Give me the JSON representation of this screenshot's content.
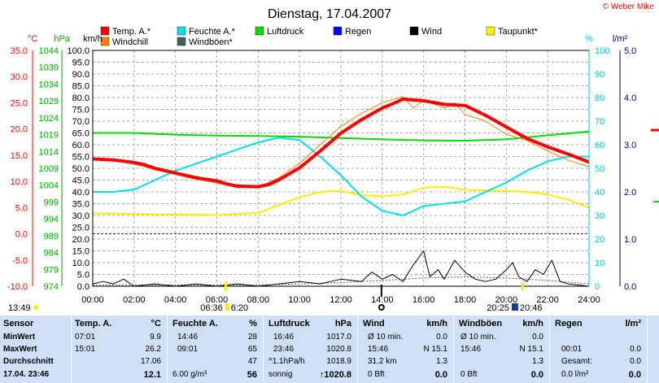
{
  "copyright": "© Weber Mike",
  "chart_data": {
    "type": "line",
    "title": "Dienstag, 17.04.2007",
    "x": {
      "unit": "time of day",
      "ticks": [
        "00:00",
        "02:00",
        "04:00",
        "06:00",
        "08:00",
        "10:00",
        "12:00",
        "14:00",
        "16:00",
        "18:00",
        "20:00",
        "22:00",
        "24:00"
      ],
      "range_hours": [
        0,
        24
      ]
    },
    "axes": {
      "temp": {
        "label": "°C",
        "range": [
          -10,
          35
        ],
        "step": 5,
        "color": "#ff0000",
        "ticks": [
          "35.0",
          "30.0",
          "25.0",
          "20.0",
          "15.0",
          "10.0",
          "5.0",
          "0.0",
          "-5.0",
          "-10.0"
        ]
      },
      "pressure": {
        "label": "hPa",
        "range": [
          974,
          1044
        ],
        "color": "#00aa00",
        "ticks": [
          "1044",
          "1039",
          "1034",
          "1029",
          "1024",
          "1019",
          "1014",
          "1009",
          "1004",
          "999",
          "994",
          "989",
          "984",
          "979",
          "974"
        ]
      },
      "wind": {
        "label": "km/h",
        "range": [
          0,
          100
        ],
        "step": 5,
        "color": "#000000",
        "ticks": [
          "100.0",
          "95.0",
          "90.0",
          "85.0",
          "80.0",
          "75.0",
          "70.0",
          "65.0",
          "60.0",
          "55.0",
          "50.0",
          "45.0",
          "40.0",
          "35.0",
          "30.0",
          "25.0",
          "20.0",
          "15.0",
          "10.0",
          "5.0",
          "0.0"
        ]
      },
      "humidity": {
        "label": "%",
        "range": [
          0,
          100
        ],
        "color": "#00c8e8",
        "ticks": [
          "100",
          "90",
          "80",
          "70",
          "60",
          "50",
          "40",
          "30",
          "20",
          "10",
          "0"
        ]
      },
      "rain": {
        "label": "l/m²",
        "range": [
          0,
          5
        ],
        "color": "#000080",
        "ticks": [
          "5.0",
          "4.0",
          "3.0",
          "2.0",
          "1.0",
          "0.0"
        ]
      }
    },
    "legend": [
      {
        "name": "Temp. A.*",
        "color": "#ff0000"
      },
      {
        "name": "Feuchte A.*",
        "color": "#00e0f0"
      },
      {
        "name": "Luftdruck",
        "color": "#00dd00"
      },
      {
        "name": "Regen",
        "color": "#0000ff"
      },
      {
        "name": "Wind",
        "color": "#000000"
      },
      {
        "name": "Taupunkt*",
        "color": "#ffee00"
      },
      {
        "name": "Windchill",
        "color": "#ff8000"
      },
      {
        "name": "Windböen*",
        "color": "#406060"
      }
    ],
    "grid": true,
    "legend_position": "top",
    "series": [
      {
        "name": "Temp. A.*",
        "axis": "temp",
        "color": "#ff0000",
        "points": [
          [
            0,
            14.3
          ],
          [
            1,
            14.1
          ],
          [
            2,
            13.6
          ],
          [
            2.5,
            13.2
          ],
          [
            3,
            12.5
          ],
          [
            4,
            11.6
          ],
          [
            5,
            10.7
          ],
          [
            6,
            10.1
          ],
          [
            6.5,
            9.5
          ],
          [
            7,
            9.1
          ],
          [
            8,
            9.0
          ],
          [
            8.5,
            9.4
          ],
          [
            9,
            10.3
          ],
          [
            10,
            12.6
          ],
          [
            11,
            15.8
          ],
          [
            12,
            19.2
          ],
          [
            13,
            21.8
          ],
          [
            14,
            24.0
          ],
          [
            14.5,
            24.8
          ],
          [
            15,
            25.7
          ],
          [
            16,
            25.4
          ],
          [
            17,
            24.7
          ],
          [
            18,
            24.5
          ],
          [
            19,
            22.6
          ],
          [
            20,
            20.4
          ],
          [
            21,
            18.2
          ],
          [
            22,
            16.6
          ],
          [
            23,
            15.2
          ],
          [
            24,
            13.7
          ]
        ]
      },
      {
        "name": "Windchill",
        "axis": "temp",
        "color": "#ff8000",
        "points": [
          [
            0,
            14.3
          ],
          [
            1,
            14.0
          ],
          [
            2,
            13.3
          ],
          [
            3,
            12.3
          ],
          [
            4,
            11.3
          ],
          [
            5,
            10.4
          ],
          [
            6,
            9.7
          ],
          [
            7,
            8.8
          ],
          [
            8,
            8.9
          ],
          [
            9,
            10.7
          ],
          [
            10,
            13.5
          ],
          [
            11,
            17.0
          ],
          [
            12,
            20.5
          ],
          [
            13,
            23.0
          ],
          [
            14,
            25.0
          ],
          [
            15,
            26.2
          ],
          [
            15.5,
            24.0
          ],
          [
            16,
            25.5
          ],
          [
            17,
            24.0
          ],
          [
            17.5,
            25.0
          ],
          [
            18,
            22.8
          ],
          [
            19,
            21.5
          ],
          [
            20,
            19.0
          ],
          [
            21,
            17.8
          ],
          [
            22,
            15.8
          ],
          [
            23,
            14.0
          ],
          [
            24,
            12.8
          ]
        ]
      },
      {
        "name": "Luftdruck",
        "axis": "pressure",
        "color": "#00dd00",
        "points": [
          [
            0,
            1019.5
          ],
          [
            2,
            1019.5
          ],
          [
            4,
            1019.0
          ],
          [
            6,
            1018.7
          ],
          [
            8,
            1018.6
          ],
          [
            10,
            1018.4
          ],
          [
            12,
            1018.0
          ],
          [
            14,
            1017.6
          ],
          [
            16,
            1017.3
          ],
          [
            18,
            1017.2
          ],
          [
            20,
            1017.6
          ],
          [
            22,
            1018.8
          ],
          [
            24,
            1019.9
          ]
        ]
      },
      {
        "name": "Feuchte A.*",
        "axis": "humidity",
        "color": "#00e0f0",
        "points": [
          [
            0,
            40
          ],
          [
            1,
            40
          ],
          [
            2,
            41
          ],
          [
            3,
            45
          ],
          [
            4,
            49
          ],
          [
            5,
            52
          ],
          [
            6,
            55
          ],
          [
            7,
            58
          ],
          [
            8,
            61
          ],
          [
            9,
            63
          ],
          [
            10,
            62
          ],
          [
            11,
            55
          ],
          [
            12,
            47
          ],
          [
            13,
            38
          ],
          [
            14,
            32
          ],
          [
            15,
            30
          ],
          [
            16,
            34
          ],
          [
            17,
            35
          ],
          [
            18,
            36
          ],
          [
            19,
            40
          ],
          [
            20,
            44
          ],
          [
            21,
            49
          ],
          [
            22,
            53
          ],
          [
            23,
            55
          ],
          [
            24,
            55
          ]
        ]
      },
      {
        "name": "Taupunkt*",
        "axis": "temp",
        "color": "#ffee00",
        "points": [
          [
            0,
            3.9
          ],
          [
            2,
            3.8
          ],
          [
            4,
            3.7
          ],
          [
            6,
            3.6
          ],
          [
            8,
            4.0
          ],
          [
            9,
            5.5
          ],
          [
            10,
            7.0
          ],
          [
            11,
            8.0
          ],
          [
            12,
            8.2
          ],
          [
            13,
            7.4
          ],
          [
            14,
            7.2
          ],
          [
            15,
            7.5
          ],
          [
            16,
            8.8
          ],
          [
            17,
            9.0
          ],
          [
            18,
            8.4
          ],
          [
            19,
            8.3
          ],
          [
            20,
            8.2
          ],
          [
            21,
            8.0
          ],
          [
            22,
            7.5
          ],
          [
            23,
            6.5
          ],
          [
            24,
            5.0
          ]
        ]
      },
      {
        "name": "Wind",
        "axis": "wind",
        "color": "#000000",
        "points": [
          [
            0,
            1
          ],
          [
            0.5,
            2
          ],
          [
            1,
            1
          ],
          [
            1.5,
            3
          ],
          [
            2,
            0
          ],
          [
            3,
            1
          ],
          [
            4,
            0
          ],
          [
            5,
            1
          ],
          [
            6,
            0
          ],
          [
            7,
            1
          ],
          [
            8,
            0
          ],
          [
            9,
            1
          ],
          [
            10,
            2
          ],
          [
            11,
            1
          ],
          [
            11.5,
            2
          ],
          [
            12,
            3
          ],
          [
            13,
            2
          ],
          [
            13.5,
            6
          ],
          [
            14,
            3
          ],
          [
            14.5,
            5
          ],
          [
            15,
            2
          ],
          [
            15.5,
            9
          ],
          [
            16,
            15
          ],
          [
            16.3,
            4
          ],
          [
            16.7,
            7
          ],
          [
            17,
            3
          ],
          [
            17.5,
            11
          ],
          [
            18,
            6
          ],
          [
            18.5,
            3
          ],
          [
            19,
            2
          ],
          [
            19.5,
            3
          ],
          [
            20,
            7
          ],
          [
            20.3,
            10
          ],
          [
            20.6,
            4
          ],
          [
            21,
            2
          ],
          [
            21.4,
            7
          ],
          [
            21.8,
            5
          ],
          [
            22.2,
            11
          ],
          [
            22.6,
            2
          ],
          [
            23,
            1
          ],
          [
            24,
            0
          ]
        ]
      },
      {
        "name": "Windböen*",
        "axis": "wind",
        "color": "#406060",
        "points": [
          [
            0,
            0.5
          ],
          [
            4,
            0.5
          ],
          [
            8,
            0.5
          ],
          [
            12,
            1.5
          ],
          [
            14,
            2.5
          ],
          [
            16,
            3.5
          ],
          [
            18,
            4.0
          ],
          [
            20,
            3.5
          ],
          [
            22,
            2.5
          ],
          [
            24,
            1.0
          ]
        ]
      }
    ],
    "annotations": {
      "left_time": "13:49",
      "sunrise": "06:36",
      "civil_sunrise": "6:20",
      "sunset": "20:25",
      "civil_sunset": "20:46"
    }
  },
  "stats": {
    "rows": [
      "Sensor",
      "MinWert",
      "MaxWert",
      "Durchschnitt",
      "17.04. 23:46"
    ],
    "temp": {
      "header": "Temp. A.",
      "unit": "°C",
      "min": {
        "time": "07:01",
        "value": "9.9"
      },
      "max": {
        "time": "15:01",
        "value": "26.2"
      },
      "avg": {
        "value": "17.06"
      },
      "current": {
        "value": "12.1"
      }
    },
    "humidity": {
      "header": "Feuchte A.",
      "unit": "%",
      "min": {
        "time": "14:46",
        "value": "28"
      },
      "max": {
        "time": "09:01",
        "value": "65"
      },
      "avg": {
        "value": "47"
      },
      "current": {
        "extra": "6.00 g/m³",
        "value": "56"
      }
    },
    "pressure": {
      "header": "Luftdruck",
      "unit": "hPa",
      "min": {
        "time": "16:46",
        "value": "1017.0"
      },
      "max": {
        "time": "23:46",
        "value": "1020.8"
      },
      "avg": {
        "extra": "^1.1hPa/h",
        "value": "1018.9"
      },
      "current": {
        "extra": "sonnig",
        "value": "↑1020.8"
      }
    },
    "wind": {
      "header": "Wind",
      "unit": "km/h",
      "min": {
        "time": "Ø 10 min.",
        "value": "0.0"
      },
      "max": {
        "time": "15:46",
        "dir": "N 15.1",
        "value": ""
      },
      "avg": {
        "extra": "31.2 km",
        "value": "1.3"
      },
      "current": {
        "extra": "0 Bft",
        "value": "0.0"
      }
    },
    "gusts": {
      "header": "Windböen",
      "unit": "km/h",
      "min": {
        "time": "Ø 10 min.",
        "value": "0.0"
      },
      "max": {
        "time": "15:46",
        "dir": "N 15.1",
        "value": ""
      },
      "avg": {
        "value": "1.3"
      },
      "current": {
        "extra": "0 Bft",
        "value": "0.0"
      }
    },
    "rain": {
      "header": "Regen",
      "unit": "l/m²",
      "max": {
        "time": "00:01",
        "value": "0.0"
      },
      "avg": {
        "label": "Gesamt:",
        "value": "0.0"
      },
      "current": {
        "extra": "0.0 l/m²",
        "value": "0.0"
      }
    }
  }
}
